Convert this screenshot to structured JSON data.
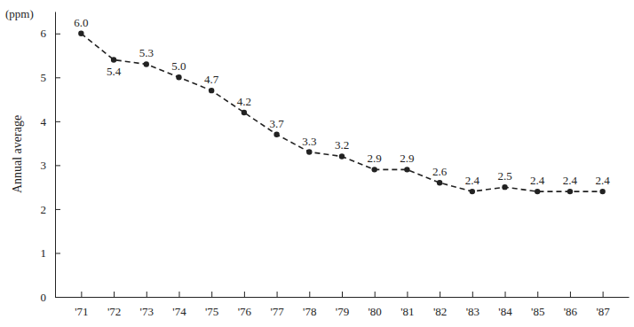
{
  "chart_data": {
    "type": "line",
    "y_label": "Annual average",
    "annotations": [
      "(ppm)"
    ],
    "categories": [
      "'71",
      "'72",
      "'73",
      "'74",
      "'75",
      "'76",
      "'77",
      "'78",
      "'79",
      "'80",
      "'81",
      "'82",
      "'83",
      "'84",
      "'85",
      "'86",
      "'87"
    ],
    "values": [
      6.0,
      5.4,
      5.3,
      5.0,
      4.7,
      4.2,
      3.7,
      3.3,
      3.2,
      2.9,
      2.9,
      2.6,
      2.4,
      2.5,
      2.4,
      2.4,
      2.4
    ],
    "value_labels": [
      "6.0",
      "5.4",
      "5.3",
      "5.0",
      "4.7",
      "4.2",
      "3.7",
      "3.3",
      "3.2",
      "2.9",
      "2.9",
      "2.6",
      "2.4",
      "2.5",
      "2.4",
      "2.4",
      "2.4"
    ],
    "data_labels": true,
    "color": "#222222",
    "marker": "circle",
    "line_style": "dashed",
    "ylim": [
      0,
      6.5
    ],
    "yticks": [
      0,
      1,
      2,
      3,
      4,
      5,
      6
    ],
    "grid": false
  }
}
